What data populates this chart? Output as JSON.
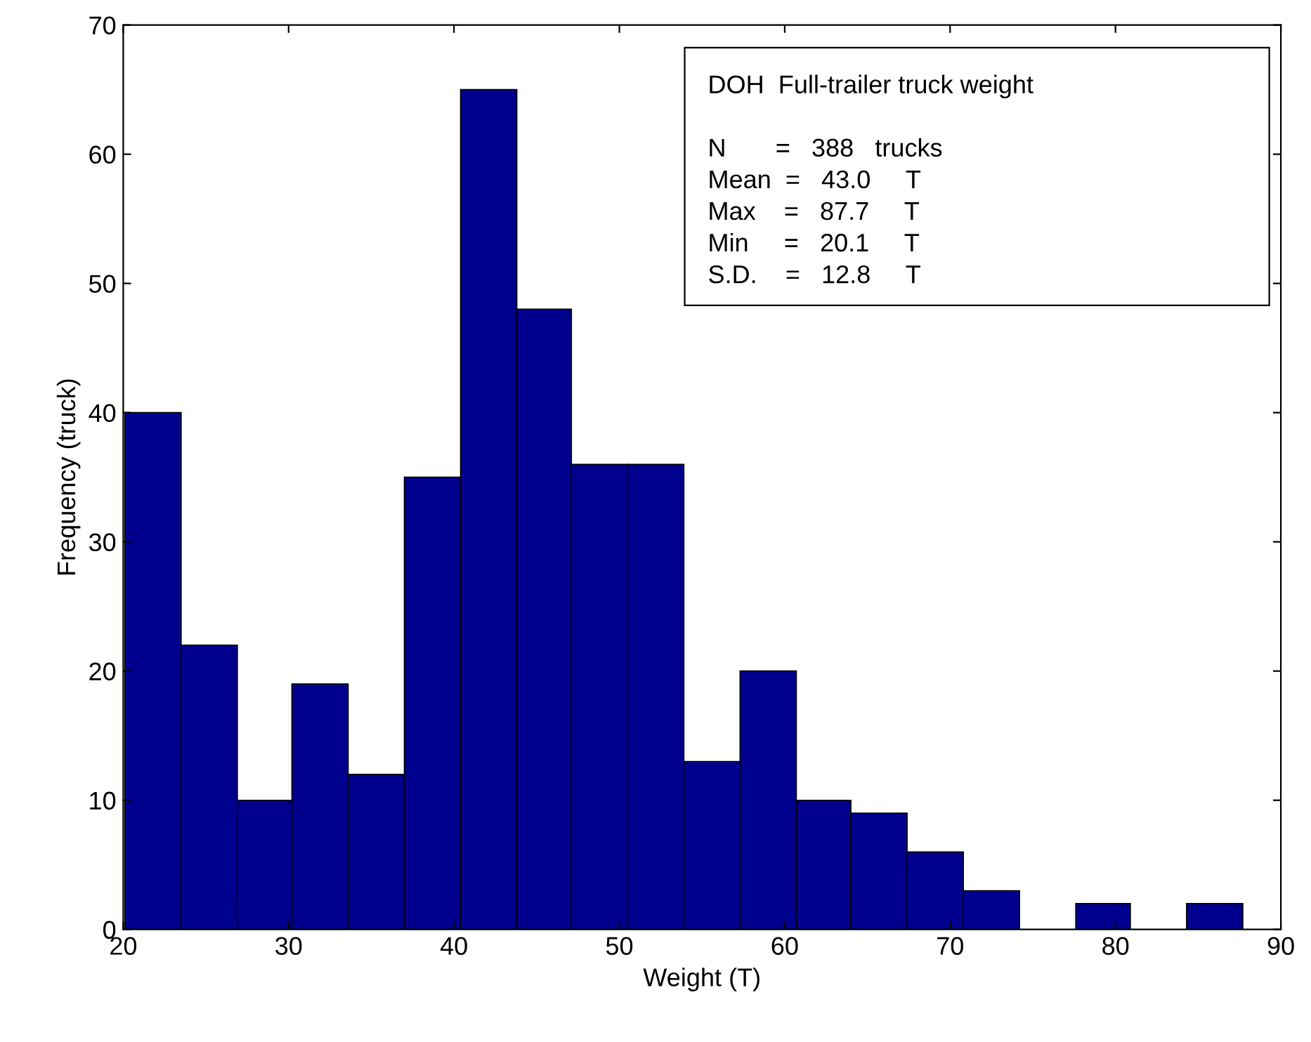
{
  "chart_data": {
    "type": "histogram",
    "xlabel": "Weight (T)",
    "ylabel": "Frequency (truck)",
    "bins": [
      20.1,
      23.5,
      26.9,
      30.2,
      33.6,
      37.0,
      40.4,
      43.8,
      47.1,
      50.5,
      53.9,
      57.3,
      60.7,
      64.0,
      67.4,
      70.8,
      74.2,
      77.6,
      80.9,
      84.3,
      87.7
    ],
    "values": [
      40,
      22,
      10,
      19,
      12,
      35,
      65,
      48,
      36,
      36,
      13,
      20,
      10,
      9,
      6,
      3,
      0,
      2,
      0,
      2
    ],
    "color": "#00008f",
    "xlim": [
      20,
      90
    ],
    "xticks": [
      20,
      30,
      40,
      50,
      60,
      70,
      80,
      90
    ],
    "ylim": [
      0,
      70
    ],
    "yticks": [
      0,
      10,
      20,
      30,
      40,
      50,
      60,
      70
    ],
    "grid": false,
    "annotations": [
      "DOH  Full-trailer truck weight",
      "N       =   388   trucks",
      "Mean  =   43.0     T",
      "Max    =   87.7     T",
      "Min     =   20.1     T",
      "S.D.    =   12.8     T"
    ]
  }
}
